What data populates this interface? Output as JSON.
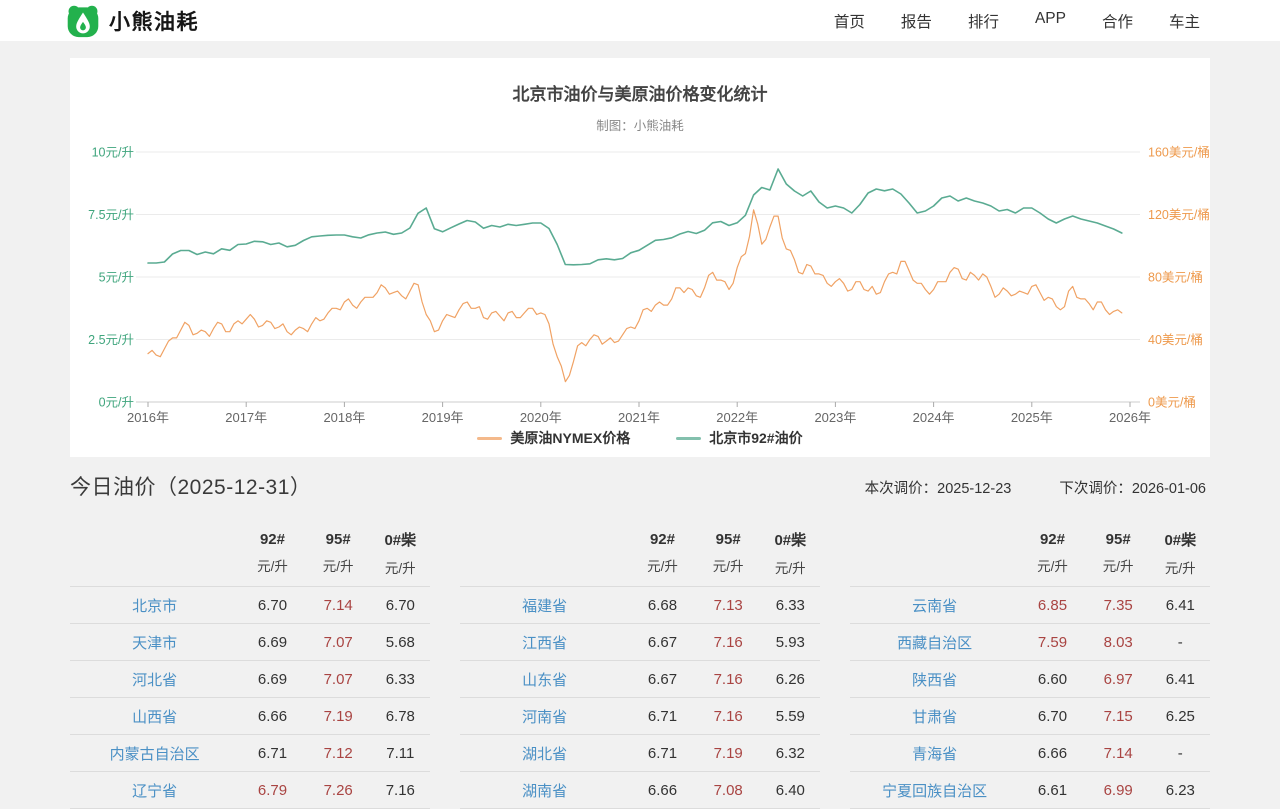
{
  "colors": {
    "brand_green": "#23b14d",
    "link_blue": "#4a90c5",
    "hot_red": "#a94442",
    "axis_green": "#3fa57d",
    "axis_orange": "#ee9a4d",
    "line_green": "#5aab92",
    "line_orange": "#f0a264",
    "grid": "#ebebeb",
    "axis_line": "#cccccc",
    "tick_label": "#666666"
  },
  "header": {
    "logo_text": "小熊油耗",
    "nav": [
      {
        "key": "home",
        "label": "首页"
      },
      {
        "key": "report",
        "label": "报告"
      },
      {
        "key": "rank",
        "label": "排行"
      },
      {
        "key": "app",
        "label": "APP"
      },
      {
        "key": "coop",
        "label": "合作"
      },
      {
        "key": "owner",
        "label": "车主"
      }
    ]
  },
  "today": {
    "title": "今日油价（2025-12-31）",
    "current_adjust": "本次调价：2025-12-23",
    "next_adjust": "下次调价：2026-01-06"
  },
  "tables": {
    "columns": [
      {
        "fuel": "92#",
        "unit": "元/升"
      },
      {
        "fuel": "95#",
        "unit": "元/升"
      },
      {
        "fuel": "0#柴",
        "unit": "元/升"
      }
    ],
    "groups": [
      [
        {
          "name": "北京市",
          "values": [
            "6.70",
            "7.14",
            "6.70"
          ],
          "red": [
            false,
            true,
            false
          ]
        },
        {
          "name": "天津市",
          "values": [
            "6.69",
            "7.07",
            "5.68"
          ],
          "red": [
            false,
            true,
            false
          ]
        },
        {
          "name": "河北省",
          "values": [
            "6.69",
            "7.07",
            "6.33"
          ],
          "red": [
            false,
            true,
            false
          ]
        },
        {
          "name": "山西省",
          "values": [
            "6.66",
            "7.19",
            "6.78"
          ],
          "red": [
            false,
            true,
            false
          ]
        },
        {
          "name": "内蒙古自治区",
          "values": [
            "6.71",
            "7.12",
            "7.11"
          ],
          "red": [
            false,
            true,
            false
          ]
        },
        {
          "name": "辽宁省",
          "values": [
            "6.79",
            "7.26",
            "7.16"
          ],
          "red": [
            true,
            true,
            false
          ]
        }
      ],
      [
        {
          "name": "福建省",
          "values": [
            "6.68",
            "7.13",
            "6.33"
          ],
          "red": [
            false,
            true,
            false
          ]
        },
        {
          "name": "江西省",
          "values": [
            "6.67",
            "7.16",
            "5.93"
          ],
          "red": [
            false,
            true,
            false
          ]
        },
        {
          "name": "山东省",
          "values": [
            "6.67",
            "7.16",
            "6.26"
          ],
          "red": [
            false,
            true,
            false
          ]
        },
        {
          "name": "河南省",
          "values": [
            "6.71",
            "7.16",
            "5.59"
          ],
          "red": [
            false,
            true,
            false
          ]
        },
        {
          "name": "湖北省",
          "values": [
            "6.71",
            "7.19",
            "6.32"
          ],
          "red": [
            false,
            true,
            false
          ]
        },
        {
          "name": "湖南省",
          "values": [
            "6.66",
            "7.08",
            "6.40"
          ],
          "red": [
            false,
            true,
            false
          ]
        }
      ],
      [
        {
          "name": "云南省",
          "values": [
            "6.85",
            "7.35",
            "6.41"
          ],
          "red": [
            true,
            true,
            false
          ]
        },
        {
          "name": "西藏自治区",
          "values": [
            "7.59",
            "8.03",
            "-"
          ],
          "red": [
            true,
            true,
            false
          ]
        },
        {
          "name": "陕西省",
          "values": [
            "6.60",
            "6.97",
            "6.41"
          ],
          "red": [
            false,
            true,
            false
          ]
        },
        {
          "name": "甘肃省",
          "values": [
            "6.70",
            "7.15",
            "6.25"
          ],
          "red": [
            false,
            true,
            false
          ]
        },
        {
          "name": "青海省",
          "values": [
            "6.66",
            "7.14",
            "-"
          ],
          "red": [
            false,
            true,
            false
          ]
        },
        {
          "name": "宁夏回族自治区",
          "values": [
            "6.61",
            "6.99",
            "6.23"
          ],
          "red": [
            false,
            true,
            false
          ]
        }
      ]
    ]
  },
  "chart_data": {
    "type": "line",
    "title": "北京市油价与美原油价格变化统计",
    "subtitle": "制图：小熊油耗",
    "x_start": 2016,
    "x_ticks": [
      "2016年",
      "2017年",
      "2018年",
      "2019年",
      "2020年",
      "2021年",
      "2022年",
      "2023年",
      "2024年",
      "2025年",
      "2026年"
    ],
    "left_axis": {
      "title": "元/升",
      "min": 0,
      "max": 10,
      "tick_labels": [
        "0元/升",
        "2.5元/升",
        "5元/升",
        "7.5元/升",
        "10元/升"
      ]
    },
    "right_axis": {
      "title": "美元/桶",
      "min": 0,
      "max": 160,
      "tick_labels": [
        "0美元/桶",
        "40美元/桶",
        "80美元/桶",
        "120美元/桶",
        "160美元/桶"
      ]
    },
    "legend_position": "bottom-center",
    "grid": true,
    "series": [
      {
        "name": "美原油NYMEX价格",
        "axis": "right",
        "color": "#f0a264",
        "width": 1.2,
        "x_step": 0.0416667,
        "values": [
          31,
          33,
          30,
          29,
          34,
          39,
          41,
          41,
          46,
          51,
          49,
          43,
          44,
          46,
          45,
          42,
          47,
          51,
          50,
          45,
          45,
          50,
          52,
          50,
          53,
          56,
          53,
          48,
          49,
          52,
          51,
          47,
          48,
          50,
          45,
          43,
          46,
          48,
          47,
          45,
          50,
          54,
          52,
          53,
          57,
          60,
          60,
          59,
          64,
          66,
          62,
          60,
          64,
          67,
          67,
          67,
          70,
          75,
          73,
          69,
          70,
          71,
          68,
          66,
          71,
          76,
          75,
          64,
          56,
          52,
          45,
          46,
          52,
          56,
          55,
          54,
          59,
          63,
          64,
          60,
          60,
          61,
          54,
          53,
          57,
          58,
          55,
          52,
          57,
          58,
          54,
          54,
          57,
          60,
          60,
          56,
          57,
          56,
          50,
          37,
          29,
          23,
          13,
          17,
          26,
          36,
          38,
          36,
          40,
          43,
          42,
          37,
          39,
          41,
          38,
          39,
          43,
          47,
          48,
          47,
          52,
          59,
          60,
          58,
          62,
          64,
          62,
          62,
          66,
          73,
          73,
          70,
          73,
          72,
          68,
          67,
          73,
          81,
          83,
          78,
          78,
          77,
          72,
          76,
          86,
          93,
          95,
          106,
          123,
          114,
          101,
          104,
          112,
          119,
          119,
          105,
          98,
          97,
          91,
          83,
          82,
          88,
          87,
          82,
          82,
          81,
          76,
          74,
          77,
          79,
          76,
          71,
          72,
          77,
          77,
          72,
          71,
          74,
          69,
          70,
          77,
          82,
          83,
          82,
          90,
          90,
          84,
          78,
          76,
          76,
          72,
          69,
          72,
          77,
          77,
          77,
          83,
          86,
          85,
          79,
          78,
          83,
          81,
          78,
          82,
          80,
          74,
          67,
          69,
          73,
          71,
          68,
          69,
          71,
          70,
          69,
          74,
          75,
          70,
          65,
          67,
          66,
          61,
          59,
          61,
          71,
          74,
          67,
          66,
          66,
          63,
          59,
          64,
          64,
          59,
          56,
          58,
          59,
          57
        ]
      },
      {
        "name": "北京市92#油价",
        "axis": "left",
        "color": "#5aab92",
        "width": 1.6,
        "x_step": 0.0833333,
        "values": [
          5.56,
          5.56,
          5.6,
          5.92,
          6.06,
          6.06,
          5.9,
          6.0,
          5.93,
          6.13,
          6.07,
          6.3,
          6.32,
          6.43,
          6.41,
          6.3,
          6.36,
          6.21,
          6.27,
          6.46,
          6.61,
          6.64,
          6.67,
          6.68,
          6.68,
          6.61,
          6.56,
          6.69,
          6.76,
          6.8,
          6.71,
          6.76,
          6.96,
          7.55,
          7.76,
          6.93,
          6.81,
          6.97,
          7.12,
          7.26,
          7.2,
          6.95,
          7.06,
          7.0,
          7.11,
          7.06,
          7.11,
          7.16,
          7.16,
          6.94,
          6.3,
          5.5,
          5.49,
          5.5,
          5.53,
          5.69,
          5.73,
          5.69,
          5.74,
          5.97,
          6.07,
          6.27,
          6.47,
          6.5,
          6.57,
          6.72,
          6.82,
          6.74,
          6.87,
          7.17,
          7.22,
          7.06,
          7.17,
          7.47,
          8.28,
          8.58,
          8.48,
          9.32,
          8.72,
          8.44,
          8.24,
          8.44,
          8.0,
          7.76,
          7.84,
          7.76,
          7.56,
          7.9,
          8.36,
          8.52,
          8.45,
          8.52,
          8.32,
          7.96,
          7.56,
          7.64,
          7.84,
          8.16,
          8.24,
          8.04,
          8.16,
          8.04,
          7.96,
          7.84,
          7.64,
          7.7,
          7.56,
          7.76,
          7.76,
          7.56,
          7.32,
          7.16,
          7.32,
          7.44,
          7.32,
          7.24,
          7.16,
          7.04,
          6.92,
          6.76
        ]
      }
    ]
  }
}
